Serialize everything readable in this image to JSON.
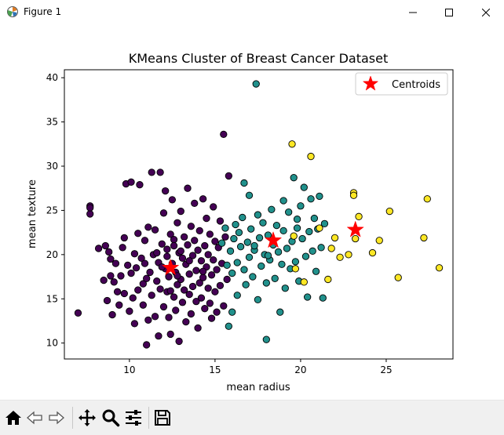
{
  "window": {
    "title": "Figure 1",
    "icons": {
      "app": "matplotlib-figure-icon",
      "minimize": "minimize-icon",
      "maximize": "maximize-icon",
      "close": "close-icon"
    }
  },
  "toolbar": {
    "items": [
      "home-icon",
      "back-arrow-icon",
      "forward-arrow-icon",
      "pan-move-icon",
      "zoom-magnifier-icon",
      "configure-subplots-icon",
      "save-floppy-icon"
    ]
  },
  "colors": {
    "cluster_0": "#440154",
    "cluster_1": "#21918c",
    "cluster_2": "#fde725",
    "centroid": "#ff0000"
  },
  "chart_data": {
    "type": "scatter",
    "title": "KMeans Cluster of Breast Cancer Dataset",
    "xlabel": "mean radius",
    "ylabel": "mean texture",
    "xlim": [
      6.2,
      28.9
    ],
    "ylim": [
      8.2,
      40.9
    ],
    "xticks": [
      10,
      15,
      20,
      25
    ],
    "yticks": [
      10,
      15,
      20,
      25,
      30,
      35,
      40
    ],
    "grid": false,
    "legend": {
      "position": "top-right",
      "entries": [
        "Centroids"
      ]
    },
    "series": [
      {
        "cluster": 0,
        "color": "#440154",
        "points": [
          [
            7.0,
            13.4
          ],
          [
            7.7,
            25.5
          ],
          [
            7.7,
            24.6
          ],
          [
            7.7,
            25.3
          ],
          [
            8.2,
            20.7
          ],
          [
            8.5,
            17.1
          ],
          [
            8.6,
            21.0
          ],
          [
            8.7,
            14.8
          ],
          [
            8.8,
            20.3
          ],
          [
            8.9,
            19.5
          ],
          [
            8.9,
            17.6
          ],
          [
            9.0,
            13.2
          ],
          [
            9.1,
            16.9
          ],
          [
            9.2,
            19.0
          ],
          [
            9.3,
            15.8
          ],
          [
            9.4,
            14.3
          ],
          [
            9.5,
            17.6
          ],
          [
            9.6,
            20.8
          ],
          [
            9.7,
            15.6
          ],
          [
            9.7,
            21.9
          ],
          [
            9.8,
            28.0
          ],
          [
            9.9,
            18.8
          ],
          [
            10.0,
            13.6
          ],
          [
            10.1,
            17.9
          ],
          [
            10.1,
            28.2
          ],
          [
            10.2,
            15.1
          ],
          [
            10.3,
            20.1
          ],
          [
            10.3,
            12.2
          ],
          [
            10.4,
            18.5
          ],
          [
            10.5,
            16.0
          ],
          [
            10.5,
            22.4
          ],
          [
            10.6,
            27.9
          ],
          [
            10.7,
            19.6
          ],
          [
            10.8,
            16.7
          ],
          [
            10.8,
            14.3
          ],
          [
            10.9,
            21.6
          ],
          [
            11.0,
            9.8
          ],
          [
            11.0,
            17.3
          ],
          [
            11.1,
            23.1
          ],
          [
            11.1,
            12.6
          ],
          [
            11.2,
            18.0
          ],
          [
            11.3,
            29.3
          ],
          [
            11.3,
            15.4
          ],
          [
            11.4,
            20.0
          ],
          [
            11.5,
            13.0
          ],
          [
            11.5,
            22.8
          ],
          [
            11.6,
            17.0
          ],
          [
            11.7,
            19.1
          ],
          [
            11.7,
            10.8
          ],
          [
            11.8,
            29.3
          ],
          [
            11.8,
            16.1
          ],
          [
            11.9,
            21.2
          ],
          [
            12.0,
            14.1
          ],
          [
            12.0,
            24.7
          ],
          [
            12.1,
            18.4
          ],
          [
            12.1,
            27.2
          ],
          [
            12.2,
            15.8
          ],
          [
            12.2,
            20.6
          ],
          [
            12.3,
            12.9
          ],
          [
            12.3,
            17.5
          ],
          [
            12.4,
            22.3
          ],
          [
            12.4,
            11.0
          ],
          [
            12.5,
            19.0
          ],
          [
            12.5,
            26.2
          ],
          [
            12.6,
            15.2
          ],
          [
            12.6,
            21.7
          ],
          [
            12.7,
            13.7
          ],
          [
            12.7,
            18.0
          ],
          [
            12.8,
            23.6
          ],
          [
            12.8,
            16.6
          ],
          [
            12.9,
            20.2
          ],
          [
            12.9,
            10.2
          ],
          [
            13.0,
            17.2
          ],
          [
            13.0,
            24.9
          ],
          [
            13.1,
            14.6
          ],
          [
            13.1,
            19.6
          ],
          [
            13.2,
            22.0
          ],
          [
            13.2,
            16.0
          ],
          [
            13.3,
            12.4
          ],
          [
            13.3,
            18.9
          ],
          [
            13.4,
            27.5
          ],
          [
            13.4,
            21.1
          ],
          [
            13.5,
            15.5
          ],
          [
            13.5,
            17.8
          ],
          [
            13.6,
            23.2
          ],
          [
            13.6,
            13.3
          ],
          [
            13.7,
            19.9
          ],
          [
            13.7,
            16.4
          ],
          [
            13.8,
            25.8
          ],
          [
            13.8,
            21.6
          ],
          [
            13.9,
            14.7
          ],
          [
            13.9,
            18.2
          ],
          [
            14.0,
            20.5
          ],
          [
            14.0,
            11.7
          ],
          [
            14.1,
            16.8
          ],
          [
            14.1,
            22.7
          ],
          [
            14.2,
            19.3
          ],
          [
            14.2,
            15.1
          ],
          [
            14.3,
            26.3
          ],
          [
            14.3,
            17.4
          ],
          [
            14.4,
            21.0
          ],
          [
            14.4,
            13.9
          ],
          [
            14.5,
            18.6
          ],
          [
            14.5,
            24.1
          ],
          [
            14.6,
            16.2
          ],
          [
            14.6,
            20.0
          ],
          [
            14.7,
            14.5
          ],
          [
            14.7,
            22.3
          ],
          [
            14.8,
            17.7
          ],
          [
            14.8,
            12.8
          ],
          [
            14.9,
            19.4
          ],
          [
            14.9,
            25.4
          ],
          [
            15.0,
            15.8
          ],
          [
            15.0,
            21.5
          ],
          [
            15.1,
            18.3
          ],
          [
            15.1,
            13.5
          ],
          [
            15.2,
            20.8
          ],
          [
            15.3,
            16.5
          ],
          [
            15.3,
            23.8
          ],
          [
            15.4,
            19.0
          ],
          [
            15.5,
            33.6
          ],
          [
            15.5,
            14.2
          ],
          [
            15.6,
            22.0
          ],
          [
            15.7,
            17.2
          ],
          [
            15.8,
            28.9
          ],
          [
            12.6,
            21.0
          ],
          [
            12.2,
            19.8
          ],
          [
            13.0,
            20.4
          ],
          [
            11.9,
            18.6
          ],
          [
            12.8,
            17.6
          ],
          [
            13.5,
            19.3
          ],
          [
            11.6,
            20.2
          ],
          [
            12.4,
            15.9
          ],
          [
            10.9,
            19.0
          ],
          [
            14.3,
            18.1
          ]
        ]
      },
      {
        "cluster": 1,
        "color": "#21918c",
        "points": [
          [
            15.6,
            23.0
          ],
          [
            15.7,
            18.8
          ],
          [
            15.8,
            11.9
          ],
          [
            15.9,
            20.4
          ],
          [
            16.0,
            17.9
          ],
          [
            16.1,
            21.8
          ],
          [
            16.2,
            23.4
          ],
          [
            16.3,
            19.1
          ],
          [
            16.3,
            15.4
          ],
          [
            16.4,
            22.5
          ],
          [
            16.5,
            20.9
          ],
          [
            16.6,
            24.2
          ],
          [
            16.7,
            18.3
          ],
          [
            16.8,
            16.6
          ],
          [
            16.9,
            21.4
          ],
          [
            17.0,
            26.7
          ],
          [
            17.0,
            19.7
          ],
          [
            17.1,
            22.9
          ],
          [
            17.2,
            17.5
          ],
          [
            17.3,
            20.5
          ],
          [
            17.4,
            39.3
          ],
          [
            17.5,
            24.5
          ],
          [
            17.5,
            14.9
          ],
          [
            17.6,
            21.9
          ],
          [
            17.7,
            18.7
          ],
          [
            17.8,
            23.6
          ],
          [
            17.9,
            20.0
          ],
          [
            18.0,
            10.4
          ],
          [
            18.0,
            16.8
          ],
          [
            18.1,
            22.2
          ],
          [
            18.2,
            19.4
          ],
          [
            18.3,
            25.1
          ],
          [
            18.4,
            21.1
          ],
          [
            18.5,
            17.3
          ],
          [
            18.6,
            23.3
          ],
          [
            18.7,
            20.3
          ],
          [
            18.8,
            13.5
          ],
          [
            18.9,
            18.9
          ],
          [
            19.0,
            26.1
          ],
          [
            19.0,
            22.7
          ],
          [
            19.1,
            16.2
          ],
          [
            19.2,
            20.7
          ],
          [
            19.3,
            24.8
          ],
          [
            19.4,
            18.4
          ],
          [
            19.5,
            21.5
          ],
          [
            19.6,
            28.7
          ],
          [
            19.7,
            19.2
          ],
          [
            19.8,
            23.0
          ],
          [
            19.9,
            17.0
          ],
          [
            20.0,
            25.5
          ],
          [
            20.1,
            21.8
          ],
          [
            20.2,
            27.6
          ],
          [
            20.3,
            19.8
          ],
          [
            20.4,
            15.2
          ],
          [
            20.5,
            22.6
          ],
          [
            20.6,
            26.3
          ],
          [
            20.7,
            20.4
          ],
          [
            20.8,
            24.1
          ],
          [
            20.9,
            18.1
          ],
          [
            21.0,
            22.9
          ],
          [
            21.1,
            26.6
          ],
          [
            21.2,
            20.8
          ],
          [
            21.3,
            15.1
          ],
          [
            21.4,
            23.5
          ],
          [
            16.7,
            28.1
          ],
          [
            15.4,
            21.3
          ],
          [
            16.0,
            13.5
          ],
          [
            17.3,
            21.0
          ],
          [
            18.1,
            19.9
          ],
          [
            19.8,
            24.0
          ]
        ]
      },
      {
        "cluster": 2,
        "color": "#fde725",
        "points": [
          [
            19.5,
            32.5
          ],
          [
            19.6,
            22.1
          ],
          [
            19.7,
            18.4
          ],
          [
            20.2,
            16.9
          ],
          [
            20.6,
            31.1
          ],
          [
            21.1,
            23.0
          ],
          [
            21.6,
            17.2
          ],
          [
            21.8,
            20.7
          ],
          [
            22.0,
            21.9
          ],
          [
            22.3,
            19.7
          ],
          [
            22.8,
            20.0
          ],
          [
            23.1,
            27.0
          ],
          [
            23.1,
            26.7
          ],
          [
            23.2,
            21.8
          ],
          [
            23.4,
            24.3
          ],
          [
            24.2,
            20.2
          ],
          [
            24.6,
            21.6
          ],
          [
            25.2,
            24.9
          ],
          [
            25.7,
            17.4
          ],
          [
            27.2,
            21.9
          ],
          [
            27.4,
            26.3
          ],
          [
            28.1,
            18.5
          ]
        ]
      }
    ],
    "centroids": [
      {
        "x": 12.4,
        "y": 18.5
      },
      {
        "x": 18.4,
        "y": 21.6
      },
      {
        "x": 23.2,
        "y": 22.8
      }
    ]
  }
}
